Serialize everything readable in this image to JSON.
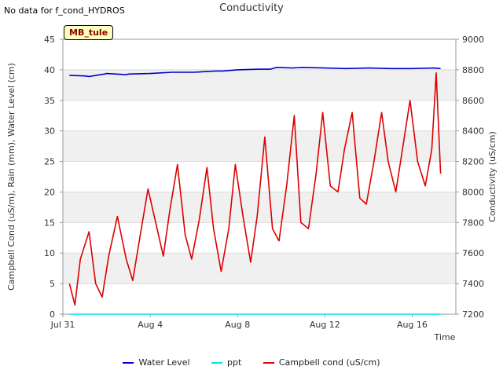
{
  "header": {
    "nodata_text": "No data for f_cond_HYDROS",
    "title": "Conductivity",
    "badge": "MB_tule"
  },
  "colors": {
    "water": "#0000cc",
    "ppt": "#00e5e5",
    "cond": "#dd0000",
    "band": "#f0f0f0",
    "grid": "#dcdcdc",
    "axis": "#999999"
  },
  "chart_data": {
    "type": "line",
    "title": "Conductivity",
    "xlabel": "Time",
    "ylabel": "Campbell Cond (uS/m), Rain (mm), Water Level (cm)",
    "y2label": "Conductivity (uS/cm)",
    "xlim": [
      0,
      18
    ],
    "ylim": [
      0,
      45
    ],
    "y2lim": [
      7200,
      9000
    ],
    "x_ticks": [
      {
        "value": 0,
        "label": "Jul 31"
      },
      {
        "value": 4,
        "label": "Aug 4"
      },
      {
        "value": 8,
        "label": "Aug 8"
      },
      {
        "value": 12,
        "label": "Aug 12"
      },
      {
        "value": 16,
        "label": "Aug 16"
      }
    ],
    "y_ticks": [
      0,
      5,
      10,
      15,
      20,
      25,
      30,
      35,
      40,
      45
    ],
    "y2_ticks": [
      7200,
      7400,
      7600,
      7800,
      8000,
      8200,
      8400,
      8600,
      8800,
      9000
    ],
    "series": [
      {
        "name": "Water Level",
        "axis": "left",
        "x": [
          0.3,
          1.0,
          1.2,
          1.9,
          2.0,
          2.9,
          3.0,
          4.0,
          5.0,
          6.0,
          7.0,
          7.3,
          8.0,
          9.0,
          9.5,
          9.8,
          10.5,
          11.0,
          12.0,
          13.0,
          14.0,
          15.0,
          16.0,
          17.0,
          17.3
        ],
        "values": [
          39.1,
          39.0,
          38.9,
          39.3,
          39.4,
          39.2,
          39.3,
          39.4,
          39.6,
          39.6,
          39.8,
          39.8,
          40.0,
          40.1,
          40.1,
          40.4,
          40.3,
          40.4,
          40.3,
          40.2,
          40.3,
          40.2,
          40.2,
          40.3,
          40.2
        ]
      },
      {
        "name": "ppt",
        "axis": "left",
        "x": [
          0.3,
          17.3
        ],
        "values": [
          0,
          0
        ]
      },
      {
        "name": "Campbell cond (uS/cm)",
        "axis": "left",
        "x": [
          0.3,
          0.55,
          0.8,
          1.2,
          1.5,
          1.8,
          2.1,
          2.5,
          2.9,
          3.2,
          3.5,
          3.9,
          4.25,
          4.6,
          4.9,
          5.25,
          5.6,
          5.9,
          6.25,
          6.6,
          6.9,
          7.25,
          7.6,
          7.9,
          8.25,
          8.6,
          8.9,
          9.25,
          9.6,
          9.9,
          10.25,
          10.6,
          10.9,
          11.25,
          11.6,
          11.9,
          12.25,
          12.6,
          12.9,
          13.25,
          13.6,
          13.9,
          14.25,
          14.6,
          14.9,
          15.25,
          15.6,
          15.9,
          16.25,
          16.6,
          16.9,
          17.1,
          17.3
        ],
        "values": [
          5.0,
          1.5,
          9.0,
          13.5,
          5.0,
          2.8,
          9.5,
          16.0,
          9.0,
          5.5,
          12.0,
          20.5,
          15.0,
          9.5,
          17.0,
          24.5,
          13.0,
          9.0,
          15.5,
          24.0,
          14.0,
          7.0,
          14.0,
          24.5,
          16.0,
          8.5,
          16.0,
          29.0,
          14.0,
          12.0,
          21.0,
          32.5,
          15.0,
          14.0,
          23.0,
          33.0,
          21.0,
          20.0,
          27.0,
          33.0,
          19.0,
          18.0,
          25.0,
          33.0,
          25.0,
          20.0,
          28.0,
          35.0,
          25.0,
          21.0,
          27.0,
          39.5,
          23.0
        ]
      }
    ]
  },
  "legend": {
    "water_label": "Water Level",
    "ppt_label": "ppt",
    "cond_label": "Campbell cond (uS/cm)"
  }
}
